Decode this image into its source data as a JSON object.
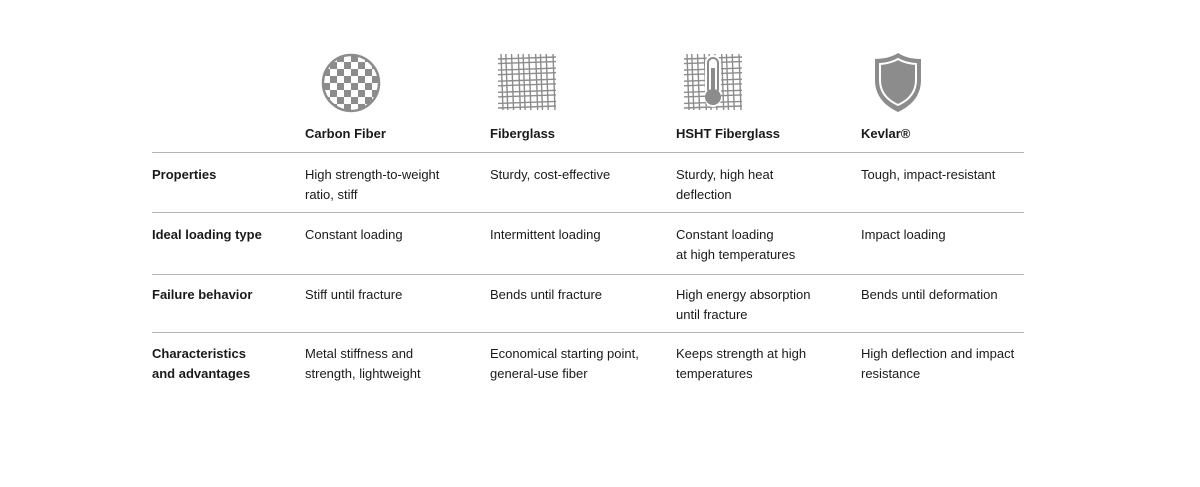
{
  "columns": [
    {
      "name": "Carbon Fiber",
      "icon": "checkered-circle-icon"
    },
    {
      "name": "Fiberglass",
      "icon": "woven-mesh-icon"
    },
    {
      "name": "HSHT Fiberglass",
      "icon": "thermometer-mesh-icon"
    },
    {
      "name": "Kevlar®",
      "icon": "shield-icon"
    }
  ],
  "rows": [
    {
      "label": "Properties",
      "cells": [
        "High strength-to-weight\nratio, stiff",
        "Sturdy, cost-effective",
        "Sturdy, high heat\ndeflection",
        "Tough, impact-resistant"
      ]
    },
    {
      "label": "Ideal loading type",
      "cells": [
        "Constant loading",
        "Intermittent loading",
        "Constant loading\nat high temperatures",
        "Impact loading"
      ]
    },
    {
      "label": "Failure behavior",
      "cells": [
        "Stiff until fracture",
        "Bends until fracture",
        "High energy absorption\nuntil fracture",
        "Bends until deformation"
      ]
    },
    {
      "label": "Characteristics\nand advantages",
      "cells": [
        "Metal stiffness and\nstrength, lightweight",
        "Economical starting point,\ngeneral-use fiber",
        "Keeps strength at high\ntemperatures",
        "High deflection and impact\nresistance"
      ]
    }
  ],
  "colors": {
    "icon_gray": "#8c8c8c",
    "divider": "#b4b4b4",
    "text": "#1a1a1a"
  }
}
